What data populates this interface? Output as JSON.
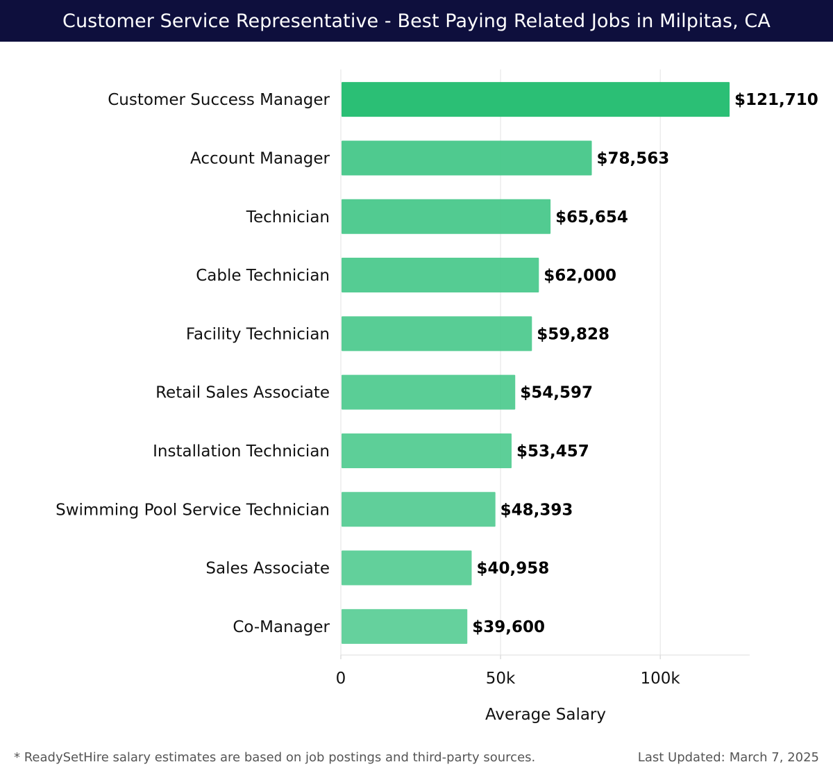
{
  "header": {
    "title": "Customer Service Representative - Best Paying Related Jobs in Milpitas, CA"
  },
  "chart_data": {
    "type": "bar",
    "orientation": "horizontal",
    "title": "Customer Service Representative - Best Paying Related Jobs in Milpitas, CA",
    "xlabel": "Average Salary",
    "ylabel": "",
    "xlim": [
      0,
      128000
    ],
    "grid": true,
    "x_ticks": [
      0,
      50000,
      100000
    ],
    "x_tick_labels": [
      "0",
      "50k",
      "100k"
    ],
    "categories": [
      "Customer Success Manager",
      "Account Manager",
      "Technician",
      "Cable Technician",
      "Facility Technician",
      "Retail Sales Associate",
      "Installation Technician",
      "Swimming Pool Service Technician",
      "Sales Associate",
      "Co-Manager"
    ],
    "values": [
      121710,
      78563,
      65654,
      62000,
      59828,
      54597,
      53457,
      48393,
      40958,
      39600
    ],
    "value_labels": [
      "$121,710",
      "$78,563",
      "$65,654",
      "$62,000",
      "$59,828",
      "$54,597",
      "$53,457",
      "$48,393",
      "$40,958",
      "$39,600"
    ],
    "colors": {
      "bar_top": "#2bbf75",
      "bar_rest": "#47c88a",
      "grid": "#e3e3e3",
      "text": "#111111"
    }
  },
  "footer": {
    "note": "* ReadySetHire salary estimates are based on job postings and third-party sources.",
    "updated_label": "Last Updated:",
    "updated_date": "March 7, 2025"
  }
}
